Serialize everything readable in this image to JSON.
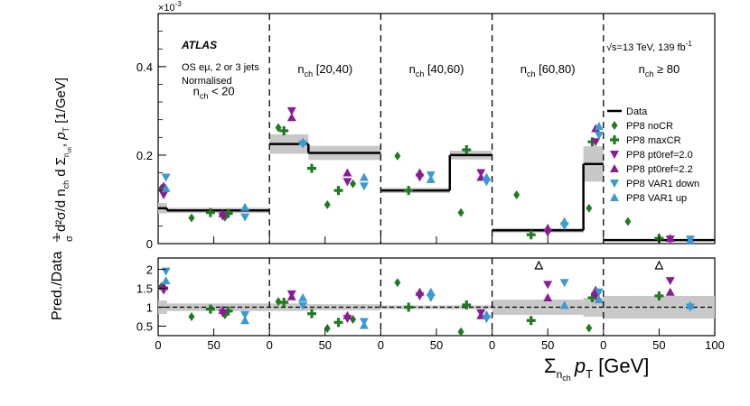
{
  "chart_data": {
    "type": "scatter",
    "exponent_label": "×10",
    "exponent_power": "-3",
    "atlas_label": "ATLAS",
    "selection_lines": [
      "OS eμ, 2 or 3 jets",
      "Normalised"
    ],
    "energy_label": "√s=13 TeV, 139 fb",
    "energy_power": "-1",
    "ylabel_upper": "1/σ d²σ/d n_ch d Σ_{n_ch} p_T [1/GeV]",
    "ylabel_lower": "Pred./Data",
    "xlabel": "Σ_{n_ch} p_T [GeV]",
    "upper_ylim": [
      0,
      0.00052
    ],
    "upper_yticks": [
      {
        "v": 0,
        "label": "0"
      },
      {
        "v": 0.0002,
        "label": "0.2"
      },
      {
        "v": 0.0004,
        "label": "0.4"
      }
    ],
    "lower_ylim": [
      0.25,
      2.3
    ],
    "lower_yticks": [
      {
        "v": 0.5,
        "label": "0.5"
      },
      {
        "v": 1,
        "label": "1"
      },
      {
        "v": 1.5,
        "label": "1.5"
      },
      {
        "v": 2,
        "label": "2"
      }
    ],
    "xticks": [
      "0",
      "50",
      "0",
      "50",
      "0",
      "50",
      "0",
      "50",
      "0",
      "50",
      "100"
    ],
    "panels": [
      {
        "label_main": "n",
        "label_sub": "ch",
        "label_rest": " < 20",
        "label_y": "0.000335",
        "xmin": 0,
        "xmax": 100
      },
      {
        "label_main": "n",
        "label_sub": "ch",
        "label_rest": " [20,40)",
        "label_y": "0.000385",
        "xmin": 0,
        "xmax": 100
      },
      {
        "label_main": "n",
        "label_sub": "ch",
        "label_rest": " [40,60)",
        "label_y": "0.000385",
        "xmin": 0,
        "xmax": 100
      },
      {
        "label_main": "n",
        "label_sub": "ch",
        "label_rest": " [60,80)",
        "label_y": "0.000385",
        "xmin": 0,
        "xmax": 100
      },
      {
        "label_main": "n",
        "label_sub": "ch",
        "label_rest": " ≥ 80",
        "label_y": "0.000385",
        "xmin": 0,
        "xmax": 100
      }
    ],
    "data": [
      {
        "panel": 0,
        "bins": [
          [
            0,
            8,
            8e-05,
            1.2e-05
          ],
          [
            8,
            100,
            7.5e-05,
            6e-06
          ]
        ]
      },
      {
        "panel": 1,
        "bins": [
          [
            0,
            35,
            0.000225,
            2.2e-05
          ],
          [
            35,
            100,
            0.000205,
            1.6e-05
          ]
        ]
      },
      {
        "panel": 2,
        "bins": [
          [
            0,
            62,
            0.00012,
            6e-06
          ],
          [
            62,
            100,
            0.0002,
            1e-05
          ]
        ]
      },
      {
        "panel": 3,
        "bins": [
          [
            0,
            82,
            3e-05,
            5e-06
          ],
          [
            82,
            100,
            0.00018,
            4e-05
          ]
        ]
      },
      {
        "panel": 4,
        "bins": [
          [
            0,
            100,
            8e-06,
            2e-06
          ]
        ]
      }
    ],
    "ratio_bands": [
      {
        "panel": 0,
        "bins": [
          [
            0,
            8,
            0.18
          ],
          [
            8,
            100,
            0.1
          ]
        ]
      },
      {
        "panel": 1,
        "bins": [
          [
            0,
            35,
            0.1
          ],
          [
            35,
            100,
            0.08
          ]
        ]
      },
      {
        "panel": 2,
        "bins": [
          [
            0,
            62,
            0.05
          ],
          [
            62,
            100,
            0.05
          ]
        ]
      },
      {
        "panel": 3,
        "bins": [
          [
            0,
            82,
            0.2
          ],
          [
            82,
            100,
            0.25
          ]
        ]
      },
      {
        "panel": 4,
        "bins": [
          [
            0,
            100,
            0.3
          ]
        ]
      }
    ],
    "series": [
      {
        "name": "PP8 noCR",
        "marker": "diamond",
        "color": "#207a20",
        "points": [
          {
            "p": 0,
            "x": 3,
            "y": 0.000125,
            "r": 1.55
          },
          {
            "p": 0,
            "x": 30,
            "y": 5.8e-05,
            "r": 0.75
          },
          {
            "p": 0,
            "x": 60,
            "y": 6e-05,
            "r": 0.8
          },
          {
            "p": 1,
            "x": 8,
            "y": 0.000262,
            "r": 1.15
          },
          {
            "p": 1,
            "x": 52,
            "y": 8.8e-05,
            "r": 0.44
          },
          {
            "p": 1,
            "x": 75,
            "y": 0.000135,
            "r": 0.68
          },
          {
            "p": 2,
            "x": 15,
            "y": 0.000198,
            "r": 1.65
          },
          {
            "p": 2,
            "x": 72,
            "y": 7e-05,
            "r": 0.35
          },
          {
            "p": 3,
            "x": 22,
            "y": 0.00011,
            "r": 3.7
          },
          {
            "p": 3,
            "x": 87,
            "y": 8e-05,
            "r": 0.45
          },
          {
            "p": 4,
            "x": 22,
            "y": 5e-05,
            "r": 6.2
          }
        ]
      },
      {
        "name": "PP8 maxCR",
        "marker": "plus",
        "color": "#207a20",
        "points": [
          {
            "p": 0,
            "x": 5,
            "y": 0.00012,
            "r": 1.5
          },
          {
            "p": 0,
            "x": 47,
            "y": 7e-05,
            "r": 0.95
          },
          {
            "p": 0,
            "x": 63,
            "y": 6.8e-05,
            "r": 0.9
          },
          {
            "p": 1,
            "x": 13,
            "y": 0.000255,
            "r": 1.13
          },
          {
            "p": 1,
            "x": 38,
            "y": 0.00017,
            "r": 0.83
          },
          {
            "p": 1,
            "x": 62,
            "y": 0.00012,
            "r": 0.6
          },
          {
            "p": 2,
            "x": 25,
            "y": 0.00012,
            "r": 1.0
          },
          {
            "p": 2,
            "x": 77,
            "y": 0.000212,
            "r": 1.06
          },
          {
            "p": 3,
            "x": 35,
            "y": 2e-05,
            "r": 0.65
          },
          {
            "p": 3,
            "x": 90,
            "y": 0.00023,
            "r": 1.25
          },
          {
            "p": 4,
            "x": 50,
            "y": 1.2e-05,
            "r": 1.3
          }
        ]
      },
      {
        "name": "PP8 pt0ref=2.0",
        "marker": "tri-down",
        "color": "#8b1a96",
        "points": [
          {
            "p": 0,
            "x": 5,
            "y": 0.00011,
            "r": 1.45
          },
          {
            "p": 0,
            "x": 58,
            "y": 6.2e-05,
            "r": 0.85
          },
          {
            "p": 1,
            "x": 20,
            "y": 0.0003,
            "r": 1.35
          },
          {
            "p": 1,
            "x": 70,
            "y": 0.00014,
            "r": 0.7
          },
          {
            "p": 2,
            "x": 35,
            "y": 0.00015,
            "r": 1.3
          },
          {
            "p": 2,
            "x": 90,
            "y": 0.00016,
            "r": 0.85
          },
          {
            "p": 3,
            "x": 50,
            "y": 2.5e-05,
            "r": 1.6
          },
          {
            "p": 3,
            "x": 93,
            "y": 0.00023,
            "r": 1.3
          },
          {
            "p": 4,
            "x": 60,
            "y": 1e-05,
            "r": 1.7
          }
        ]
      },
      {
        "name": "PP8 pt0ref=2.2",
        "marker": "tri-up",
        "color": "#8b1a96",
        "points": [
          {
            "p": 0,
            "x": 5,
            "y": 0.00013,
            "r": 1.55
          },
          {
            "p": 0,
            "x": 58,
            "y": 6.8e-05,
            "r": 0.92
          },
          {
            "p": 1,
            "x": 20,
            "y": 0.000285,
            "r": 1.28
          },
          {
            "p": 1,
            "x": 70,
            "y": 0.00016,
            "r": 0.78
          },
          {
            "p": 2,
            "x": 35,
            "y": 0.00016,
            "r": 1.4
          },
          {
            "p": 2,
            "x": 90,
            "y": 0.00015,
            "r": 0.78
          },
          {
            "p": 3,
            "x": 50,
            "y": 3.5e-05,
            "r": 1.25
          },
          {
            "p": 3,
            "x": 93,
            "y": 0.00026,
            "r": 1.45
          },
          {
            "p": 4,
            "x": 60,
            "y": 1.2e-05,
            "r": 1.4
          }
        ]
      },
      {
        "name": "PP8 VAR1 down",
        "marker": "tri-down",
        "color": "#3b9ad0",
        "points": [
          {
            "p": 0,
            "x": 7,
            "y": 0.00015,
            "r": 1.95
          },
          {
            "p": 0,
            "x": 78,
            "y": 6e-05,
            "r": 0.8
          },
          {
            "p": 1,
            "x": 30,
            "y": 0.000225,
            "r": 1.05
          },
          {
            "p": 1,
            "x": 85,
            "y": 0.00013,
            "r": 0.62
          },
          {
            "p": 2,
            "x": 45,
            "y": 0.000155,
            "r": 1.25
          },
          {
            "p": 2,
            "x": 95,
            "y": 0.00014,
            "r": 0.7
          },
          {
            "p": 3,
            "x": 65,
            "y": 4e-05,
            "r": 1.65
          },
          {
            "p": 3,
            "x": 96,
            "y": 0.000245,
            "r": 1.4
          },
          {
            "p": 4,
            "x": 78,
            "y": 1e-05,
            "r": 1.0
          }
        ]
      },
      {
        "name": "PP8 VAR1 up",
        "marker": "tri-up",
        "color": "#3b9ad0",
        "points": [
          {
            "p": 0,
            "x": 7,
            "y": 0.000125,
            "r": 1.7
          },
          {
            "p": 0,
            "x": 78,
            "y": 8.2e-05,
            "r": 0.65
          },
          {
            "p": 1,
            "x": 30,
            "y": 0.00023,
            "r": 1.25
          },
          {
            "p": 1,
            "x": 85,
            "y": 0.00015,
            "r": 0.52
          },
          {
            "p": 2,
            "x": 45,
            "y": 0.000145,
            "r": 1.4
          },
          {
            "p": 2,
            "x": 95,
            "y": 0.00015,
            "r": 0.8
          },
          {
            "p": 3,
            "x": 65,
            "y": 5e-05,
            "r": 1.05
          },
          {
            "p": 3,
            "x": 96,
            "y": 0.000265,
            "r": 1.2
          },
          {
            "p": 4,
            "x": 78,
            "y": 8e-06,
            "r": 1.05
          }
        ]
      }
    ],
    "legend": [
      {
        "label": "Data",
        "marker": "line",
        "color": "#000000"
      },
      {
        "label": "PP8 noCR",
        "marker": "diamond",
        "color": "#207a20"
      },
      {
        "label": "PP8 maxCR",
        "marker": "plus",
        "color": "#207a20"
      },
      {
        "label": "PP8 pt0ref=2.0",
        "marker": "tri-down",
        "color": "#8b1a96"
      },
      {
        "label": "PP8 pt0ref=2.2",
        "marker": "tri-up",
        "color": "#8b1a96"
      },
      {
        "label": "PP8 VAR1 down",
        "marker": "tri-down",
        "color": "#3b9ad0"
      },
      {
        "label": "PP8 VAR1 up",
        "marker": "tri-up",
        "color": "#3b9ad0"
      }
    ],
    "offscale_arrows": [
      {
        "p": 3,
        "x": 42
      },
      {
        "p": 4,
        "x": 50
      }
    ],
    "legend_position": "right",
    "grid": false
  }
}
